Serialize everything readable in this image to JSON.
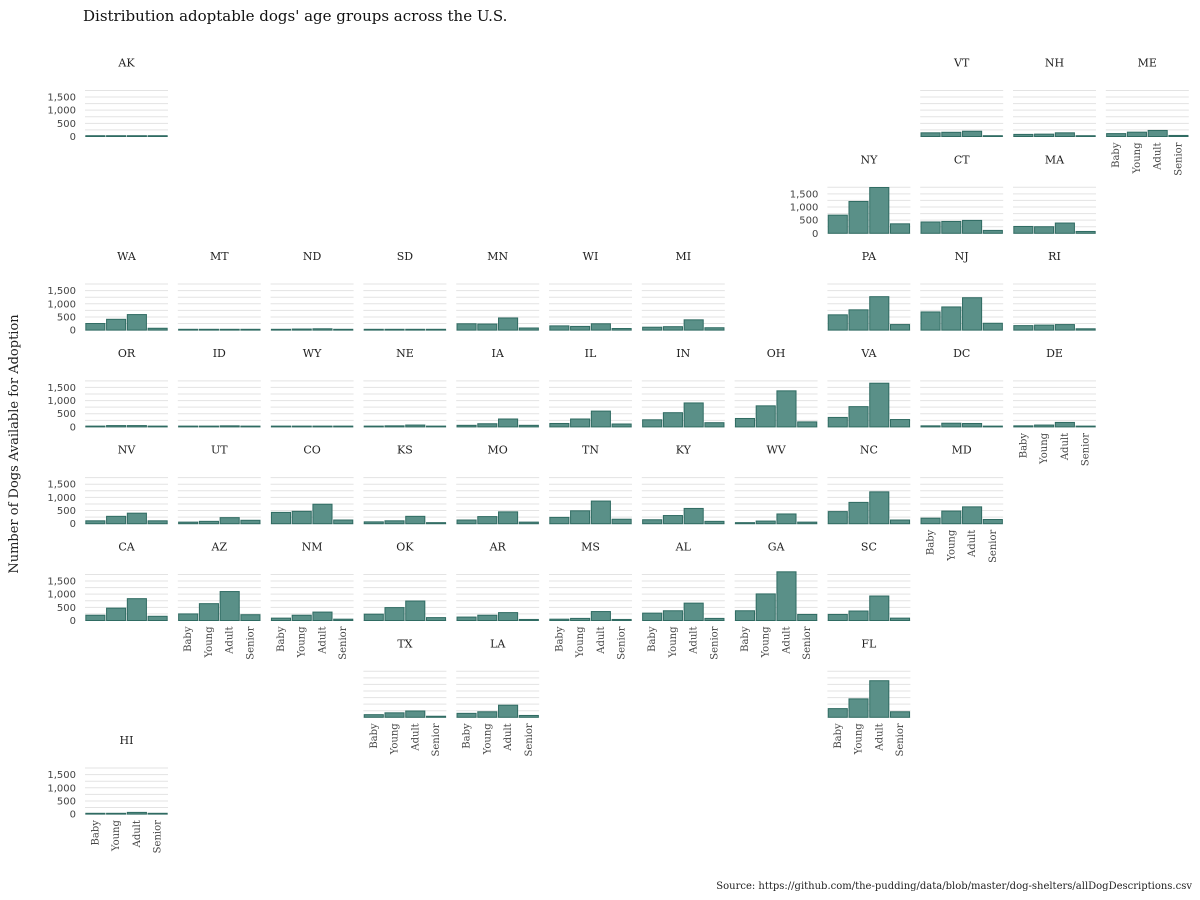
{
  "chart_data": {
    "type": "bar",
    "title": "Distribution adoptable dogs' age groups across the U.S.",
    "ylabel": "Number of Dogs Available for Adoption",
    "caption": "Source: https://github.com/the-pudding/data/blob/master/dog-shelters/allDogDescriptions.csv",
    "categories": [
      "Baby",
      "Young",
      "Adult",
      "Senior"
    ],
    "ylim": [
      0,
      1900
    ],
    "yticks": [
      0,
      500,
      1000,
      1500
    ],
    "ytick_labels": [
      "0",
      "500",
      "1,000",
      "1,500"
    ],
    "grid": true,
    "colors": {
      "bar": "#5a9088",
      "bar_edge": "#2f6b62"
    },
    "panels": [
      {
        "state": "AK",
        "row": 0,
        "col": 0,
        "values": [
          15,
          10,
          20,
          0
        ]
      },
      {
        "state": "VT",
        "row": 0,
        "col": 9,
        "values": [
          140,
          160,
          200,
          25
        ]
      },
      {
        "state": "NH",
        "row": 0,
        "col": 10,
        "values": [
          80,
          90,
          140,
          25
        ]
      },
      {
        "state": "ME",
        "row": 0,
        "col": 11,
        "values": [
          110,
          165,
          230,
          40
        ]
      },
      {
        "state": "NY",
        "row": 1,
        "col": 8,
        "values": [
          690,
          1210,
          1740,
          360
        ]
      },
      {
        "state": "CT",
        "row": 1,
        "col": 9,
        "values": [
          430,
          450,
          490,
          110
        ]
      },
      {
        "state": "MA",
        "row": 1,
        "col": 10,
        "values": [
          260,
          250,
          390,
          70
        ]
      },
      {
        "state": "WA",
        "row": 2,
        "col": 0,
        "values": [
          250,
          410,
          590,
          70
        ]
      },
      {
        "state": "MT",
        "row": 2,
        "col": 1,
        "values": [
          5,
          20,
          25,
          10
        ]
      },
      {
        "state": "ND",
        "row": 2,
        "col": 2,
        "values": [
          20,
          40,
          50,
          5
        ]
      },
      {
        "state": "SD",
        "row": 2,
        "col": 3,
        "values": [
          10,
          15,
          25,
          5
        ]
      },
      {
        "state": "MN",
        "row": 2,
        "col": 4,
        "values": [
          240,
          230,
          460,
          80
        ]
      },
      {
        "state": "WI",
        "row": 2,
        "col": 5,
        "values": [
          160,
          140,
          240,
          60
        ]
      },
      {
        "state": "MI",
        "row": 2,
        "col": 6,
        "values": [
          110,
          130,
          390,
          90
        ]
      },
      {
        "state": "PA",
        "row": 2,
        "col": 8,
        "values": [
          580,
          770,
          1270,
          210
        ]
      },
      {
        "state": "NJ",
        "row": 2,
        "col": 9,
        "values": [
          690,
          880,
          1230,
          260
        ]
      },
      {
        "state": "RI",
        "row": 2,
        "col": 10,
        "values": [
          170,
          190,
          210,
          50
        ]
      },
      {
        "state": "OR",
        "row": 3,
        "col": 0,
        "values": [
          30,
          50,
          50,
          10
        ]
      },
      {
        "state": "ID",
        "row": 3,
        "col": 1,
        "values": [
          15,
          15,
          40,
          10
        ]
      },
      {
        "state": "WY",
        "row": 3,
        "col": 2,
        "values": [
          15,
          25,
          30,
          10
        ]
      },
      {
        "state": "NE",
        "row": 3,
        "col": 3,
        "values": [
          10,
          40,
          70,
          20
        ]
      },
      {
        "state": "IA",
        "row": 3,
        "col": 4,
        "values": [
          60,
          120,
          300,
          60
        ]
      },
      {
        "state": "IL",
        "row": 3,
        "col": 5,
        "values": [
          130,
          300,
          600,
          110
        ]
      },
      {
        "state": "IN",
        "row": 3,
        "col": 6,
        "values": [
          270,
          540,
          910,
          160
        ]
      },
      {
        "state": "OH",
        "row": 3,
        "col": 7,
        "values": [
          320,
          800,
          1370,
          190
        ]
      },
      {
        "state": "VA",
        "row": 3,
        "col": 8,
        "values": [
          360,
          770,
          1660,
          280
        ]
      },
      {
        "state": "DC",
        "row": 3,
        "col": 9,
        "values": [
          40,
          140,
          130,
          20
        ]
      },
      {
        "state": "DE",
        "row": 3,
        "col": 10,
        "values": [
          40,
          70,
          170,
          20
        ]
      },
      {
        "state": "NV",
        "row": 4,
        "col": 0,
        "values": [
          110,
          280,
          400,
          110
        ]
      },
      {
        "state": "UT",
        "row": 4,
        "col": 1,
        "values": [
          60,
          90,
          230,
          130
        ]
      },
      {
        "state": "CO",
        "row": 4,
        "col": 2,
        "values": [
          430,
          470,
          740,
          140
        ]
      },
      {
        "state": "KS",
        "row": 4,
        "col": 3,
        "values": [
          70,
          110,
          280,
          40
        ]
      },
      {
        "state": "MO",
        "row": 4,
        "col": 4,
        "values": [
          140,
          270,
          450,
          60
        ]
      },
      {
        "state": "TN",
        "row": 4,
        "col": 5,
        "values": [
          240,
          490,
          860,
          170
        ]
      },
      {
        "state": "KY",
        "row": 4,
        "col": 6,
        "values": [
          150,
          310,
          580,
          90
        ]
      },
      {
        "state": "WV",
        "row": 4,
        "col": 7,
        "values": [
          40,
          100,
          370,
          60
        ]
      },
      {
        "state": "NC",
        "row": 4,
        "col": 8,
        "values": [
          460,
          810,
          1210,
          140
        ]
      },
      {
        "state": "MD",
        "row": 4,
        "col": 9,
        "values": [
          210,
          480,
          640,
          160
        ]
      },
      {
        "state": "CA",
        "row": 5,
        "col": 0,
        "values": [
          200,
          470,
          830,
          160
        ]
      },
      {
        "state": "AZ",
        "row": 5,
        "col": 1,
        "values": [
          250,
          640,
          1100,
          220
        ]
      },
      {
        "state": "NM",
        "row": 5,
        "col": 2,
        "values": [
          90,
          200,
          320,
          50
        ]
      },
      {
        "state": "OK",
        "row": 5,
        "col": 3,
        "values": [
          240,
          490,
          740,
          110
        ]
      },
      {
        "state": "AR",
        "row": 5,
        "col": 4,
        "values": [
          130,
          200,
          300,
          40
        ]
      },
      {
        "state": "MS",
        "row": 5,
        "col": 5,
        "values": [
          50,
          80,
          340,
          40
        ]
      },
      {
        "state": "AL",
        "row": 5,
        "col": 6,
        "values": [
          280,
          370,
          660,
          80
        ]
      },
      {
        "state": "GA",
        "row": 5,
        "col": 7,
        "values": [
          370,
          1010,
          1850,
          230
        ]
      },
      {
        "state": "SC",
        "row": 5,
        "col": 8,
        "values": [
          230,
          360,
          930,
          90
        ]
      },
      {
        "state": "TX",
        "row": 6,
        "col": 3,
        "values": [
          100,
          170,
          240,
          40
        ]
      },
      {
        "state": "LA",
        "row": 6,
        "col": 4,
        "values": [
          150,
          210,
          460,
          70
        ]
      },
      {
        "state": "FL",
        "row": 6,
        "col": 8,
        "values": [
          330,
          700,
          1390,
          210
        ]
      },
      {
        "state": "HI",
        "row": 7,
        "col": 0,
        "values": [
          15,
          10,
          65,
          10
        ]
      }
    ],
    "x_axis_panels": [
      "AZ",
      "NM",
      "TX",
      "LA",
      "MS",
      "AL",
      "GA",
      "FL",
      "HI",
      "MD",
      "DE",
      "ME"
    ]
  }
}
